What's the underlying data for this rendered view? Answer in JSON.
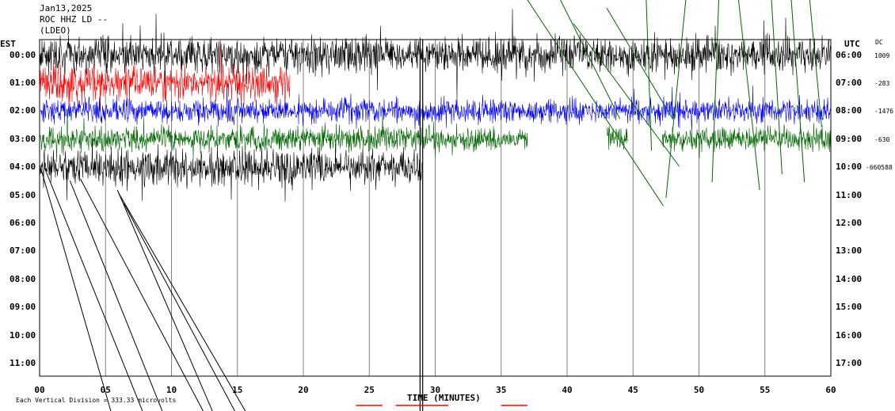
{
  "header": {
    "date": "Jan13,2025",
    "station": "ROC HHZ LD --",
    "source_line": "(LDEO)"
  },
  "left_zone_label": "EST",
  "right_zone_label": "UTC",
  "dc_label": "DC",
  "footer": {
    "scale_note": "Each Vertical Division = 333.33 microvolts",
    "x_title": "TIME (MINUTES)"
  },
  "chart_data": {
    "type": "line",
    "title": "",
    "xlabel": "TIME (MINUTES)",
    "xlim": [
      0,
      60
    ],
    "x_ticks": [
      "00",
      "05",
      "10",
      "15",
      "20",
      "25",
      "30",
      "35",
      "40",
      "45",
      "50",
      "55",
      "60"
    ],
    "rows_est": [
      "00:00",
      "01:00",
      "02:00",
      "03:00",
      "04:00",
      "05:00",
      "06:00",
      "07:00",
      "08:00",
      "09:00",
      "10:00",
      "11:00"
    ],
    "rows_utc": [
      "06:00",
      "07:00",
      "08:00",
      "09:00",
      "10:00",
      "11:00",
      "12:00",
      "13:00",
      "14:00",
      "15:00",
      "16:00",
      "17:00"
    ],
    "dc_offsets": [
      "1009",
      "-283",
      "-1476",
      "-630",
      "-660588"
    ],
    "grid": "vertical lines every 5 minutes",
    "series": [
      {
        "row": 0,
        "color": "#000000",
        "start_min": 0,
        "end_min": 60,
        "amplitude": "high"
      },
      {
        "row": 1,
        "color": "#ff0000",
        "start_min": 0,
        "end_min": 19,
        "amplitude": "high"
      },
      {
        "row": 2,
        "color": "#0000ff",
        "start_min": 0,
        "end_min": 60,
        "amplitude": "medium"
      },
      {
        "row": 3,
        "color": "#006600",
        "start_min": 0,
        "end_min": 60,
        "amplitude": "medium",
        "gaps": [
          [
            37,
            43
          ],
          [
            44.6,
            47.2
          ]
        ]
      },
      {
        "row": 4,
        "color": "#000000",
        "start_min": 0,
        "end_min": 29,
        "amplitude": "high"
      }
    ]
  }
}
